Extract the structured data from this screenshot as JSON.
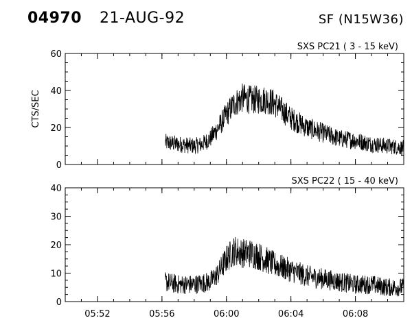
{
  "header": {
    "event_id": "04970",
    "date": "21-AUG-92",
    "location": "SF (N15W36)"
  },
  "chart_data": [
    {
      "type": "line",
      "title": "SXS PC21  (  3 - 15 keV)",
      "ylabel": "CTS/SEC",
      "xlabel": "",
      "ylim": [
        0,
        60
      ],
      "yticks": [
        0,
        20,
        40,
        60
      ],
      "xlim": [
        "05:50",
        "06:11"
      ],
      "xticks": [
        "05:52",
        "05:56",
        "06:00",
        "06:04",
        "06:08"
      ],
      "show_xtick_labels": false,
      "series": [
        {
          "x": [
            "05:56.2",
            "05:57.0",
            "05:58.0",
            "05:58.5",
            "05:59.0",
            "05:59.5",
            "06:00.0",
            "06:00.5",
            "06:01.0",
            "06:01.5",
            "06:02.0",
            "06:02.5",
            "06:03.0",
            "06:03.5",
            "06:04.0",
            "06:05.0",
            "06:06.0",
            "06:07.0",
            "06:08.0",
            "06:09.0",
            "06:10.0",
            "06:11.0"
          ],
          "y": [
            12,
            11,
            10,
            11,
            14,
            20,
            27,
            33,
            36,
            35,
            35,
            35,
            33,
            29,
            25,
            20,
            17,
            14,
            13,
            11,
            10,
            9
          ],
          "noise": 5
        }
      ]
    },
    {
      "type": "line",
      "title": "SXS PC22  ( 15 - 40 keV)",
      "ylabel": "",
      "xlabel": "",
      "ylim": [
        0,
        40
      ],
      "yticks": [
        0,
        10,
        20,
        30,
        40
      ],
      "xlim": [
        "05:50",
        "06:11"
      ],
      "xticks": [
        "05:52",
        "05:56",
        "06:00",
        "06:04",
        "06:08"
      ],
      "show_xtick_labels": true,
      "series": [
        {
          "x": [
            "05:56.2",
            "05:57.0",
            "05:58.0",
            "05:59.0",
            "05:59.5",
            "06:00.0",
            "06:00.5",
            "06:01.0",
            "06:01.5",
            "06:02.0",
            "06:03.0",
            "06:04.0",
            "06:05.0",
            "06:06.0",
            "06:07.0",
            "06:08.0",
            "06:09.0",
            "06:10.0",
            "06:11.0"
          ],
          "y": [
            7,
            6,
            6,
            7,
            10,
            15,
            18,
            17,
            17,
            16,
            13,
            11,
            9,
            8,
            7,
            6,
            6,
            5,
            5
          ],
          "noise": 4
        }
      ]
    }
  ]
}
